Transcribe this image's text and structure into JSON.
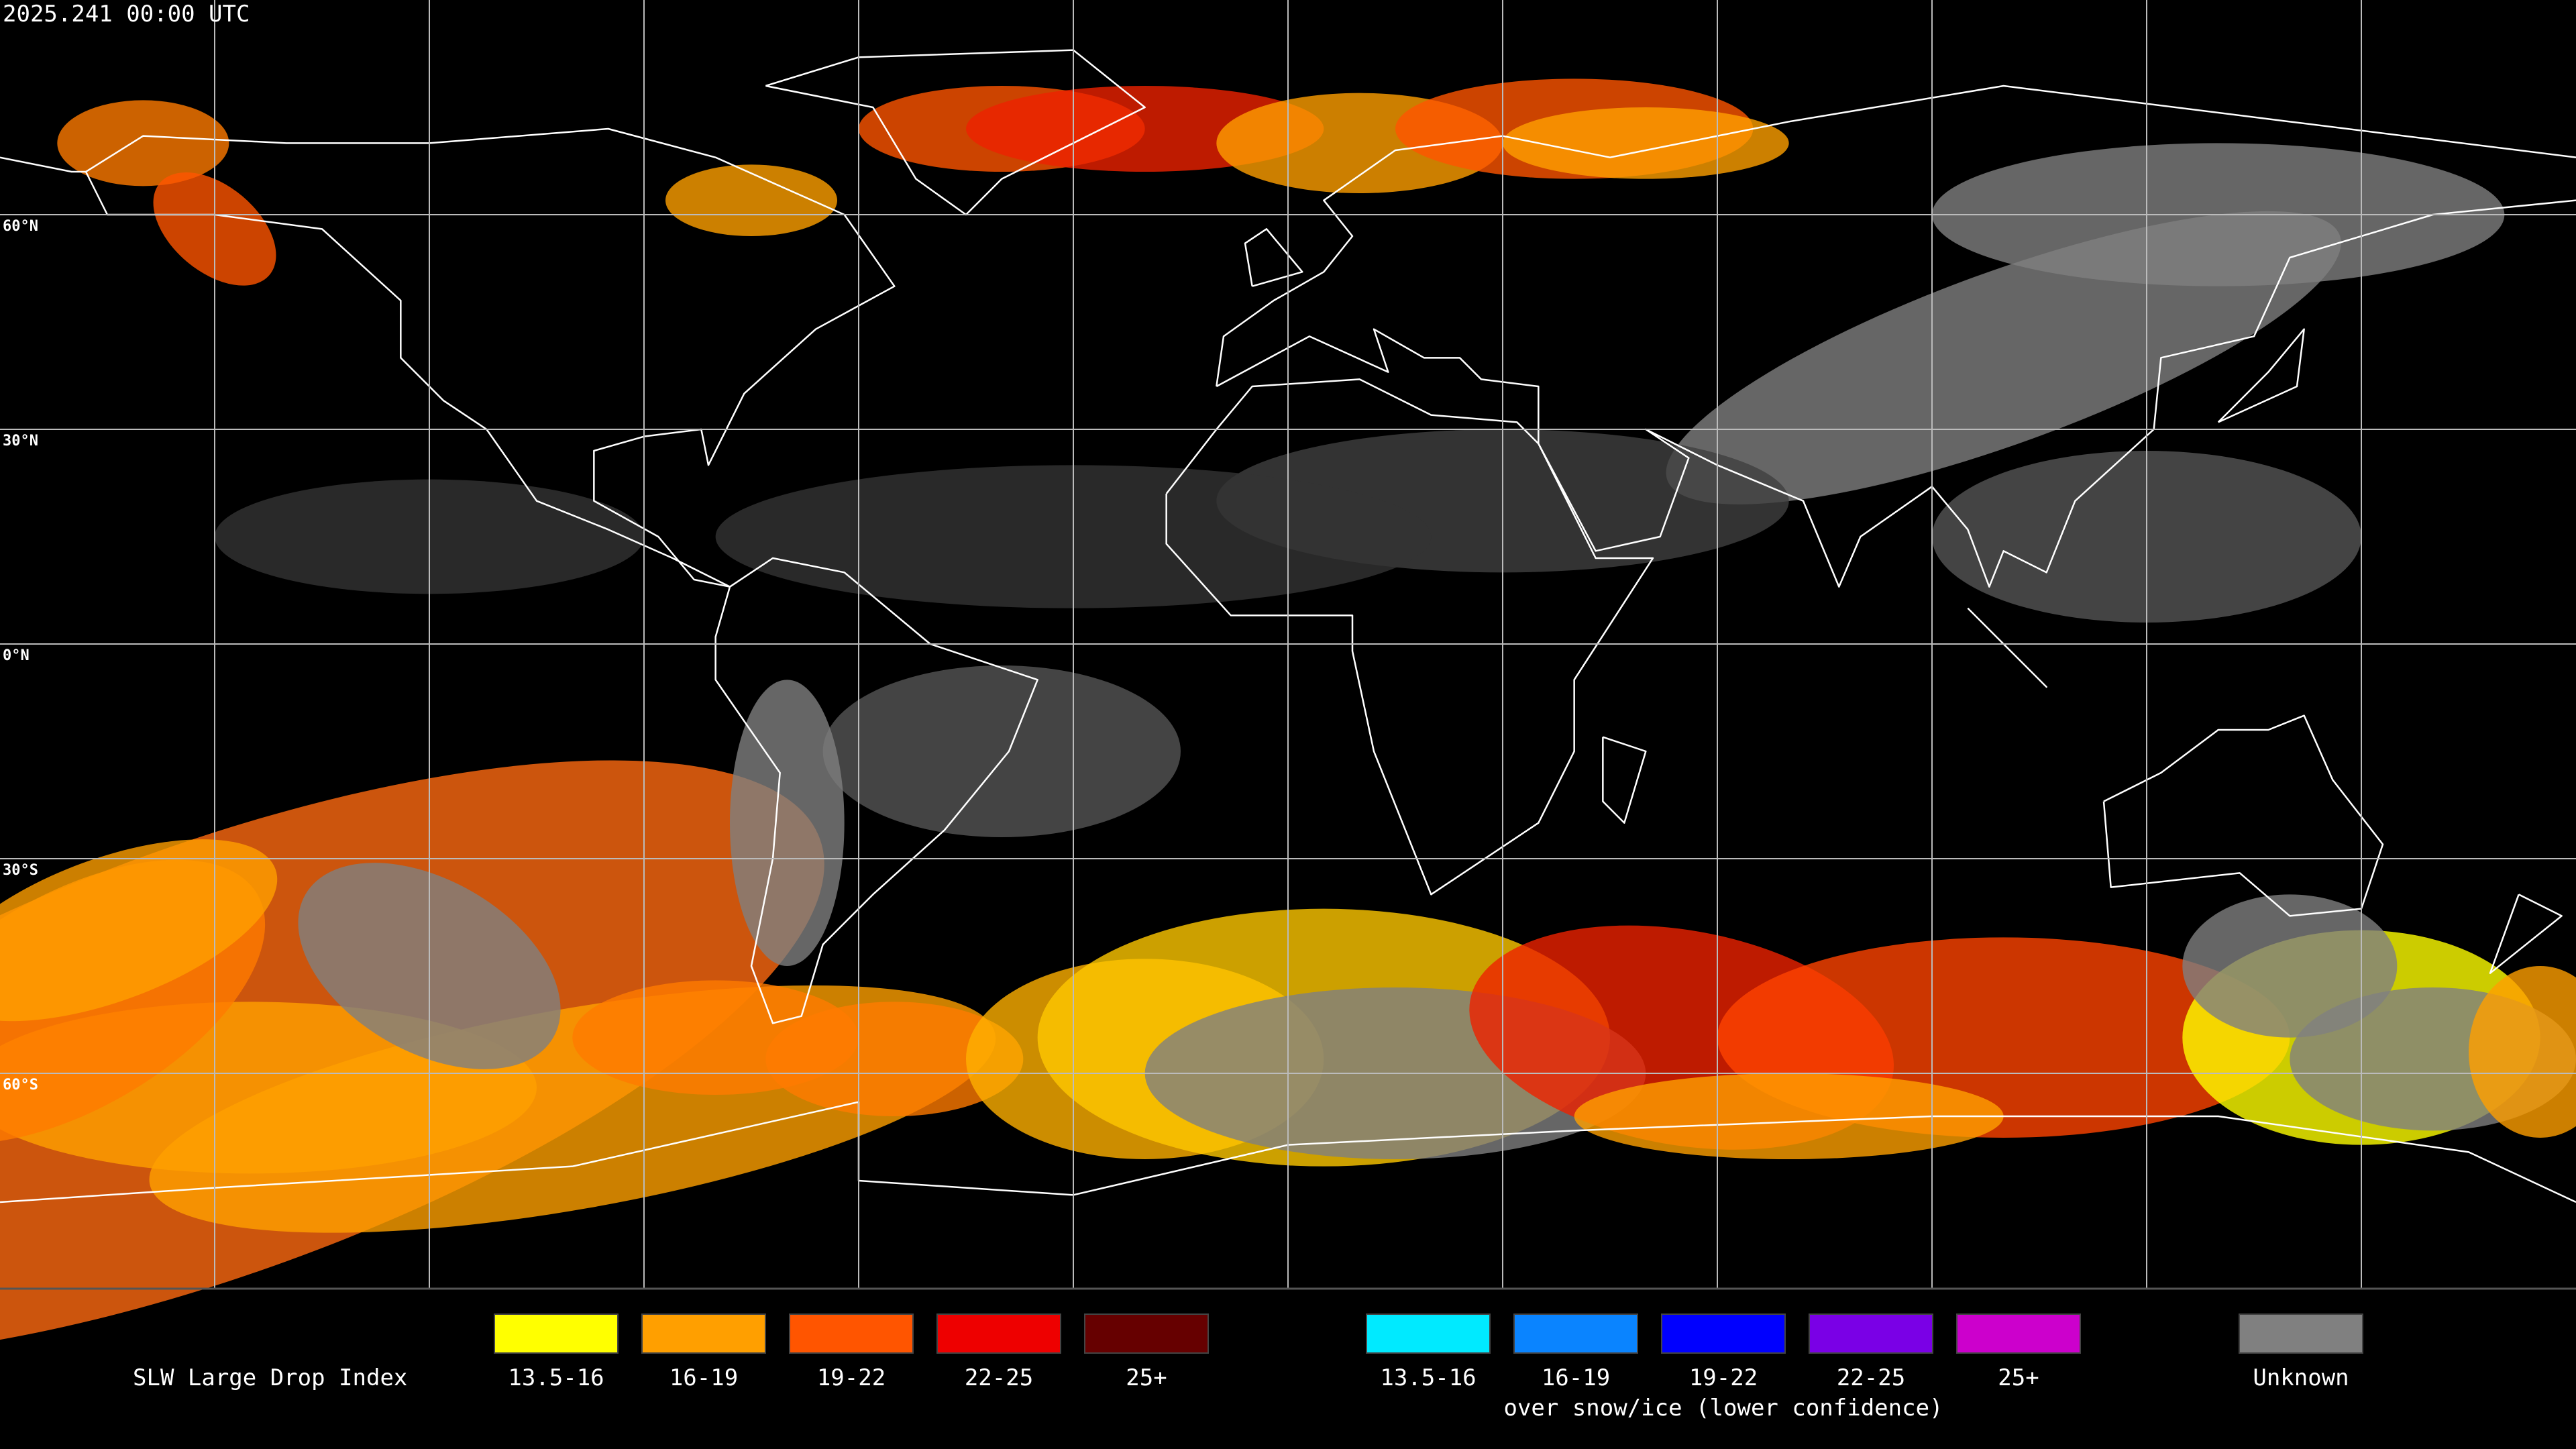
{
  "header": {
    "title": "2025.241 00:00 UTC"
  },
  "map": {
    "lat_labels": [
      "60°N",
      "30°N",
      "0°N",
      "30°S",
      "60°S"
    ]
  },
  "legend": {
    "title": "SLW Large Drop Index",
    "groups": [
      {
        "items": [
          {
            "label": "13.5-16",
            "color": "#ffff00"
          },
          {
            "label": "16-19",
            "color": "#ff9f00"
          },
          {
            "label": "19-22",
            "color": "#ff5500"
          },
          {
            "label": "22-25",
            "color": "#ee0000"
          },
          {
            "label": "25+",
            "color": "#660000"
          }
        ]
      },
      {
        "note": "over snow/ice (lower confidence)",
        "items": [
          {
            "label": "13.5-16",
            "color": "#00eaff"
          },
          {
            "label": "16-19",
            "color": "#0a84ff"
          },
          {
            "label": "19-22",
            "color": "#0000ff"
          },
          {
            "label": "22-25",
            "color": "#7a00e6"
          },
          {
            "label": "25+",
            "color": "#cc00cc"
          }
        ]
      }
    ],
    "unknown": {
      "label": "Unknown",
      "color": "#808080"
    }
  }
}
